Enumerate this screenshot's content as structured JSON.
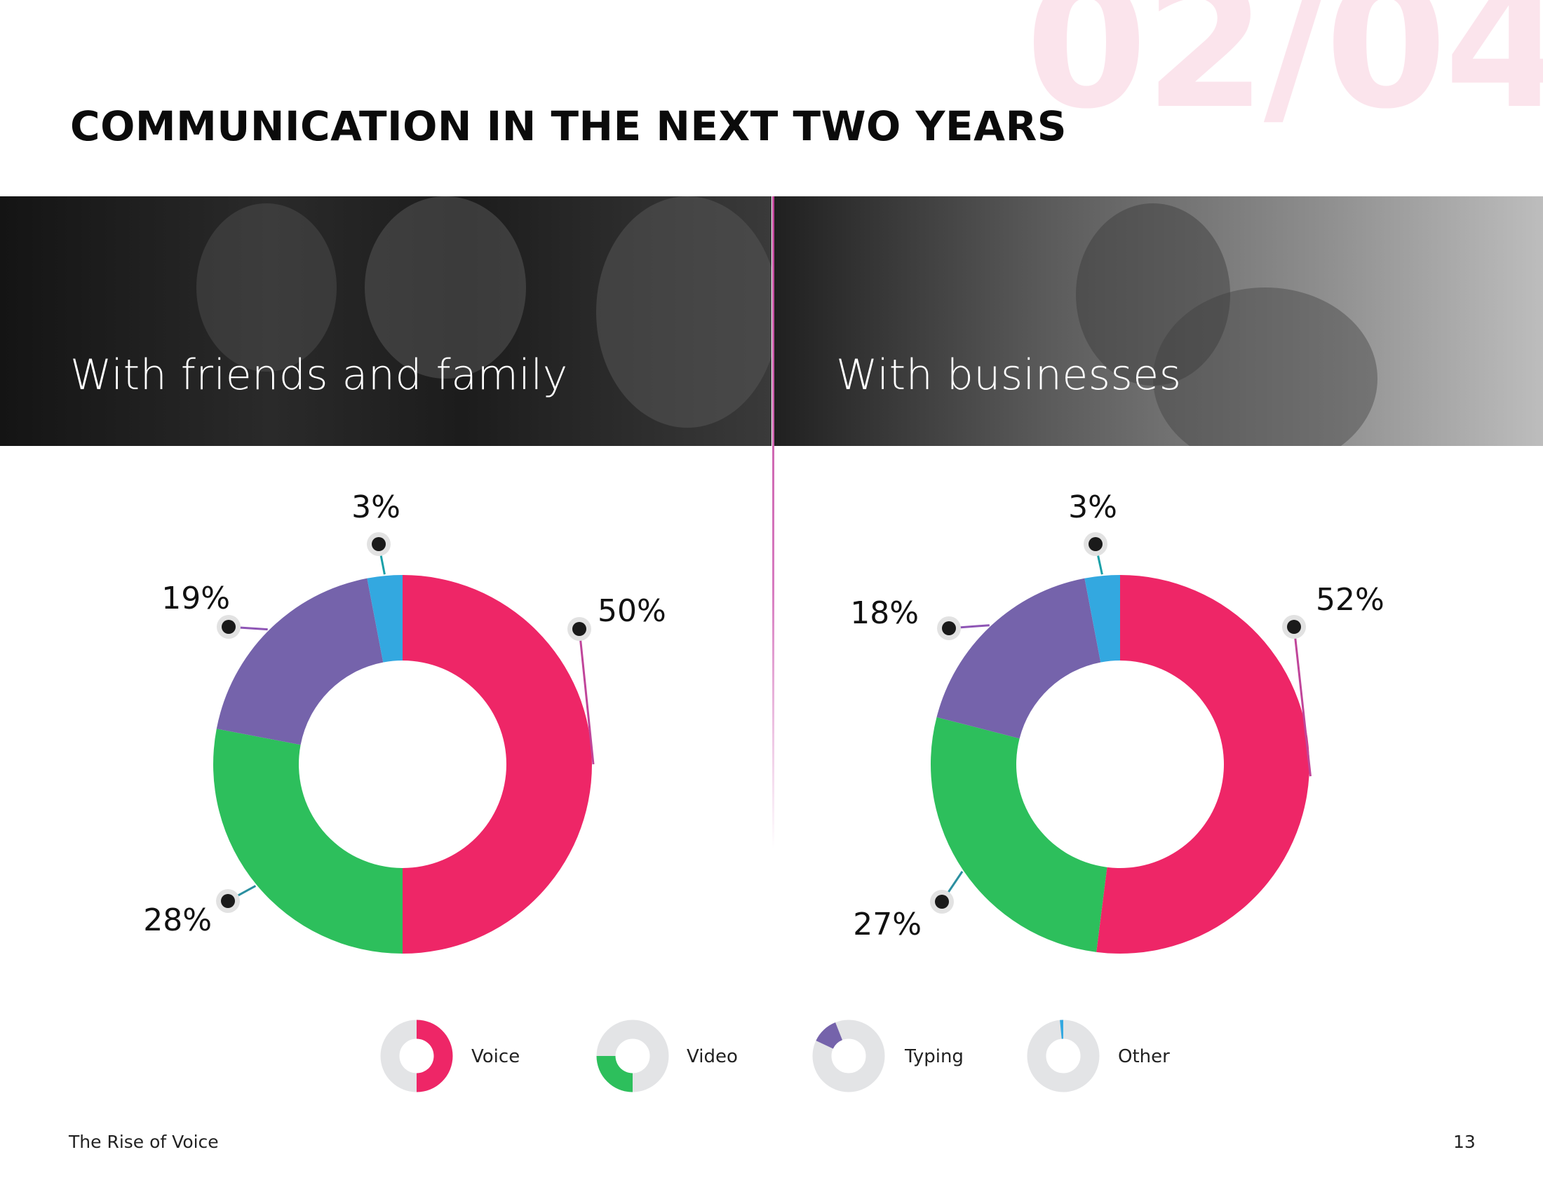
{
  "watermark": "02/04",
  "title": "COMMUNICATION IN THE NEXT TWO YEARS",
  "panels": {
    "left": {
      "label": "With friends and family"
    },
    "right": {
      "label": "With businesses"
    }
  },
  "colors": {
    "voice": "#ee2667",
    "video": "#2dbf5c",
    "typing": "#7563ab",
    "other": "#33a8e0",
    "legend_track": "#e3e4e6"
  },
  "chart_data": [
    {
      "type": "pie",
      "categories": [
        "Voice",
        "Video",
        "Typing",
        "Other"
      ],
      "values": [
        50,
        28,
        19,
        3
      ],
      "labels": [
        "50%",
        "28%",
        "19%",
        "3%"
      ]
    },
    {
      "type": "pie",
      "categories": [
        "Voice",
        "Video",
        "Typing",
        "Other"
      ],
      "values": [
        52,
        27,
        18,
        3
      ],
      "labels": [
        "52%",
        "27%",
        "18%",
        "3%"
      ]
    }
  ],
  "legend": [
    {
      "label": "Voice",
      "fraction": 0.5,
      "start": 0,
      "color_key": "voice"
    },
    {
      "label": "Video",
      "fraction": 0.25,
      "start": 0.5,
      "color_key": "video"
    },
    {
      "label": "Typing",
      "fraction": 0.12,
      "start": 0.82,
      "color_key": "typing"
    },
    {
      "label": "Other",
      "fraction": 0.03,
      "start": 0.985,
      "color_key": "other"
    }
  ],
  "footer": {
    "source": "The Rise of Voice",
    "page": "13"
  }
}
